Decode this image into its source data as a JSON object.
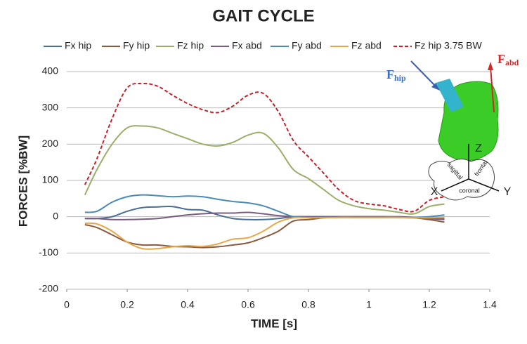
{
  "chart_data": {
    "type": "line",
    "title": "GAIT CYCLE",
    "x_label": "TIME [s]",
    "y_label": "FORCES [%BW]",
    "x": [
      0.06,
      0.1,
      0.15,
      0.2,
      0.25,
      0.3,
      0.35,
      0.4,
      0.45,
      0.5,
      0.55,
      0.6,
      0.65,
      0.7,
      0.75,
      0.8,
      0.85,
      0.9,
      0.95,
      1.0,
      1.05,
      1.1,
      1.15,
      1.2,
      1.25
    ],
    "series": [
      {
        "name": "Fx hip",
        "color": "#4a6f94",
        "values": [
          -5,
          -5,
          0,
          15,
          25,
          27,
          28,
          20,
          18,
          5,
          -5,
          -8,
          -8,
          -5,
          0,
          0,
          0,
          0,
          0,
          0,
          0,
          -2,
          -3,
          -3,
          -5
        ]
      },
      {
        "name": "Fy hip",
        "color": "#8b5a3c",
        "values": [
          -22,
          -30,
          -50,
          -70,
          -78,
          -78,
          -82,
          -83,
          -85,
          -83,
          -78,
          -72,
          -58,
          -40,
          -12,
          -8,
          -3,
          -2,
          -2,
          -2,
          -2,
          -2,
          -3,
          -8,
          -15
        ]
      },
      {
        "name": "Fz hip",
        "color": "#9aaf6a",
        "values": [
          60,
          130,
          200,
          245,
          250,
          245,
          230,
          215,
          200,
          195,
          205,
          225,
          230,
          190,
          130,
          105,
          75,
          45,
          30,
          22,
          18,
          12,
          8,
          28,
          35
        ]
      },
      {
        "name": "Fx abd",
        "color": "#7a5c7f",
        "values": [
          -5,
          -5,
          -8,
          -8,
          -7,
          -5,
          0,
          5,
          8,
          10,
          10,
          12,
          8,
          3,
          0,
          0,
          0,
          0,
          0,
          0,
          0,
          0,
          -2,
          -5,
          -8
        ]
      },
      {
        "name": "Fy abd",
        "color": "#4a8ab5",
        "values": [
          12,
          15,
          40,
          55,
          60,
          58,
          55,
          57,
          55,
          48,
          42,
          38,
          30,
          15,
          0,
          -2,
          -2,
          -2,
          -2,
          -2,
          -2,
          -2,
          -2,
          0,
          5
        ]
      },
      {
        "name": "Fz abd",
        "color": "#e8a848",
        "values": [
          -18,
          -20,
          -40,
          -70,
          -88,
          -88,
          -83,
          -80,
          -82,
          -75,
          -62,
          -58,
          -40,
          -15,
          -3,
          -3,
          -3,
          -2,
          -2,
          -2,
          -2,
          -2,
          -3,
          -3,
          -2
        ]
      },
      {
        "name": "Fz hip 3.75 BW",
        "color": "#c8202a",
        "line_style": "dashed",
        "values": [
          88,
          160,
          270,
          355,
          367,
          360,
          335,
          312,
          295,
          287,
          305,
          335,
          340,
          290,
          210,
          165,
          120,
          75,
          45,
          35,
          30,
          20,
          15,
          45,
          55
        ]
      }
    ],
    "xlim": [
      0,
      1.4
    ],
    "xticks": [
      0,
      0.2,
      0.4,
      0.6,
      0.8,
      1,
      1.2,
      1.4
    ],
    "ylim": [
      -200,
      400
    ],
    "yticks": [
      -200,
      -100,
      0,
      100,
      200,
      300,
      400
    ],
    "grid": true,
    "legend": "top",
    "annotations": {
      "f_hip": {
        "main": "F",
        "sub": "hip"
      },
      "f_abd": {
        "main": "F",
        "sub": "abd"
      },
      "axis_z": "Z",
      "axis_x": "X",
      "axis_y": "Y",
      "plane_1": "sagittal",
      "plane_2": "frontal",
      "plane_3": "coronal"
    }
  }
}
